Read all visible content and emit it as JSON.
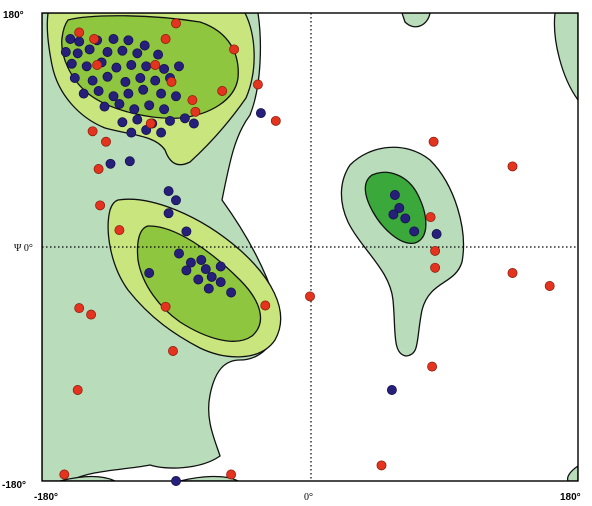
{
  "chart_data": {
    "type": "scatter",
    "title": "",
    "xlabel": "",
    "ylabel": "Ψ",
    "xlim": [
      -180,
      180
    ],
    "ylim": [
      -180,
      180
    ],
    "x_ticks": [
      {
        "value": -180,
        "label": "-180°"
      },
      {
        "value": 0,
        "label": "0°"
      },
      {
        "value": 180,
        "label": "180°"
      }
    ],
    "y_ticks": [
      {
        "value": 180,
        "label": "180°"
      },
      {
        "value": 0,
        "label": "Ψ 0°"
      },
      {
        "value": -180,
        "label": "-180°"
      }
    ],
    "grid": "dotted zero lines",
    "colors": {
      "outer_region": "#b9ddbb",
      "allowed_region": "#c9e57e",
      "favored_region": "#8ec63f",
      "core_left_handed": "#3aa83a",
      "blue_points": "#27207a",
      "red_points": "#e2341f"
    },
    "series": [
      {
        "color": "#27207a",
        "points": [
          [
            -161,
            160
          ],
          [
            -155,
            158
          ],
          [
            -143,
            159
          ],
          [
            -132,
            160
          ],
          [
            -122,
            159
          ],
          [
            -111,
            155
          ],
          [
            -164,
            150
          ],
          [
            -156,
            149
          ],
          [
            -148,
            152
          ],
          [
            -136,
            150
          ],
          [
            -126,
            151
          ],
          [
            -116,
            149
          ],
          [
            -102,
            148
          ],
          [
            -160,
            141
          ],
          [
            -150,
            139
          ],
          [
            -140,
            142
          ],
          [
            -130,
            138
          ],
          [
            -120,
            140
          ],
          [
            -110,
            139
          ],
          [
            -98,
            137
          ],
          [
            -88,
            139
          ],
          [
            -158,
            130
          ],
          [
            -146,
            128
          ],
          [
            -136,
            131
          ],
          [
            -124,
            127
          ],
          [
            -114,
            130
          ],
          [
            -104,
            128
          ],
          [
            -94,
            130
          ],
          [
            -152,
            118
          ],
          [
            -142,
            120
          ],
          [
            -132,
            116
          ],
          [
            -122,
            118
          ],
          [
            -112,
            121
          ],
          [
            -100,
            118
          ],
          [
            -90,
            116
          ],
          [
            -138,
            108
          ],
          [
            -128,
            110
          ],
          [
            -118,
            106
          ],
          [
            -108,
            109
          ],
          [
            -98,
            106
          ],
          [
            -126,
            96
          ],
          [
            -116,
            98
          ],
          [
            -106,
            95
          ],
          [
            -94,
            97
          ],
          [
            -84,
            99
          ],
          [
            -120,
            88
          ],
          [
            -110,
            90
          ],
          [
            -100,
            88
          ],
          [
            -78,
            95
          ],
          [
            -33,
            103
          ],
          [
            -121,
            66
          ],
          [
            -134,
            64
          ],
          [
            -95,
            43
          ],
          [
            -90,
            36
          ],
          [
            -95,
            26
          ],
          [
            -83,
            12
          ],
          [
            -108,
            -20
          ],
          [
            -88,
            -5
          ],
          [
            -80,
            -12
          ],
          [
            -73,
            -10
          ],
          [
            -70,
            -17
          ],
          [
            -66,
            -23
          ],
          [
            -60,
            -27
          ],
          [
            -53,
            -35
          ],
          [
            -68,
            -32
          ],
          [
            -75,
            -25
          ],
          [
            -83,
            -18
          ],
          [
            -60,
            -15
          ],
          [
            57,
            40
          ],
          [
            60,
            30
          ],
          [
            64,
            22
          ],
          [
            56,
            25
          ],
          [
            70,
            12
          ],
          [
            85,
            10
          ],
          [
            55,
            -110
          ],
          [
            -90,
            -180
          ]
        ]
      },
      {
        "color": "#e2341f",
        "points": [
          [
            -155,
            165
          ],
          [
            -145,
            160
          ],
          [
            -90,
            172
          ],
          [
            -97,
            160
          ],
          [
            -93,
            127
          ],
          [
            -51,
            152
          ],
          [
            -104,
            140
          ],
          [
            -143,
            140
          ],
          [
            -59,
            120
          ],
          [
            -35,
            125
          ],
          [
            -79,
            113
          ],
          [
            -77,
            104
          ],
          [
            -107,
            95
          ],
          [
            -146,
            89
          ],
          [
            -142,
            60
          ],
          [
            -137,
            81
          ],
          [
            -23,
            97
          ],
          [
            -141,
            32
          ],
          [
            -128,
            13
          ],
          [
            -30,
            -45
          ],
          [
            0,
            -38
          ],
          [
            -97,
            -46
          ],
          [
            -147,
            -52
          ],
          [
            -155,
            -47
          ],
          [
            -92,
            -80
          ],
          [
            -156,
            -110
          ],
          [
            -165,
            -175
          ],
          [
            -53,
            -175
          ],
          [
            83,
            81
          ],
          [
            136,
            62
          ],
          [
            84,
            -16
          ],
          [
            84,
            -3
          ],
          [
            81,
            23
          ],
          [
            136,
            -20
          ],
          [
            161,
            -30
          ],
          [
            82,
            -92
          ],
          [
            48,
            -168
          ]
        ]
      }
    ]
  }
}
